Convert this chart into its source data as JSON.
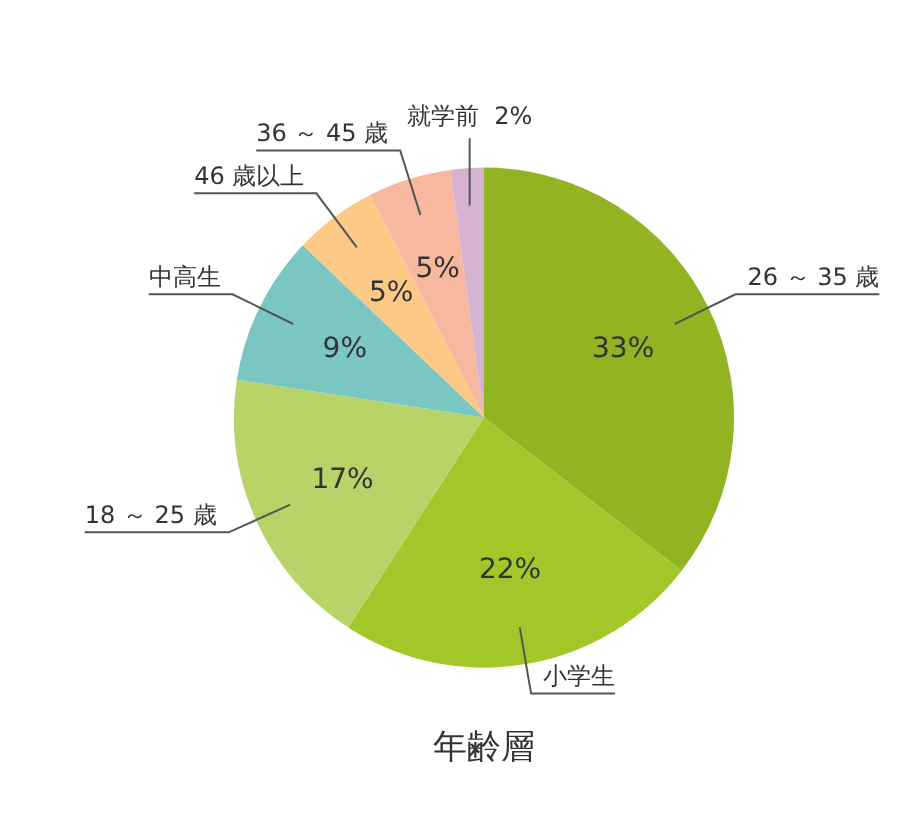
{
  "chart_data": {
    "type": "pie",
    "title": "年齢層",
    "categories": [
      "26 ～ 35 歳",
      "小学生",
      "18 ～ 25 歳",
      "中高生",
      "46 歳以上",
      "36 ～ 45 歳",
      "就学前"
    ],
    "values": [
      33,
      22,
      17,
      9,
      5,
      5,
      2
    ],
    "colors": [
      "#93b422",
      "#a2c728",
      "#b8d368",
      "#79c6c3",
      "#fcc987",
      "#f8b79f",
      "#d5b2cf"
    ],
    "value_labels": [
      "33%",
      "22%",
      "17%",
      "9%",
      "5%",
      "5%",
      "2%"
    ]
  }
}
